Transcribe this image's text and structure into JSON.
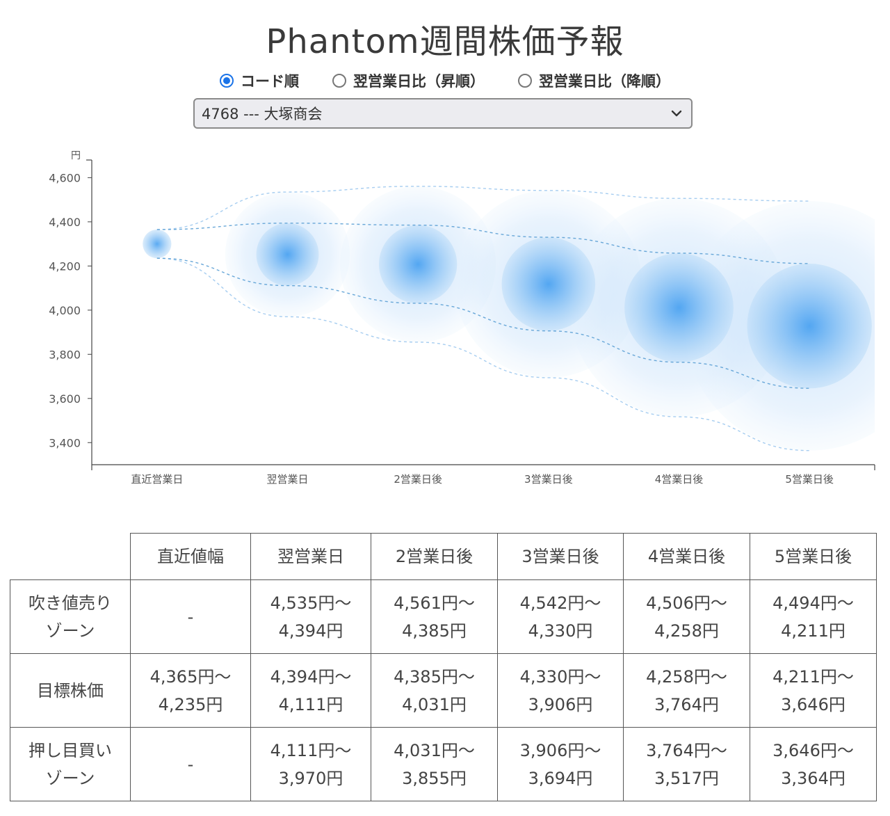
{
  "title": "Phantom週間株価予報",
  "sort_options": [
    {
      "label": "コード順",
      "checked": true
    },
    {
      "label": "翌営業日比（昇順）",
      "checked": false
    },
    {
      "label": "翌営業日比（降順）",
      "checked": false
    }
  ],
  "stock_select": {
    "value": "4768 --- 大塚商会"
  },
  "chart_data": {
    "type": "scatter",
    "title": "",
    "xlabel": "",
    "ylabel": "円",
    "categories": [
      "直近営業日",
      "翌営業日",
      "2営業日後",
      "3営業日後",
      "4営業日後",
      "5営業日後"
    ],
    "ylim": [
      3300,
      4680
    ],
    "yticks": [
      3400,
      3600,
      3800,
      4000,
      4200,
      4400,
      4600
    ],
    "ytick_labels": [
      "3,400",
      "3,600",
      "3,800",
      "4,000",
      "4,200",
      "4,400",
      "4,600"
    ],
    "grid": false,
    "target_center": [
      4300,
      4252,
      4208,
      4118,
      4011,
      3928
    ],
    "target_range": [
      [
        4365,
        4235
      ],
      [
        4394,
        4111
      ],
      [
        4385,
        4031
      ],
      [
        4330,
        3906
      ],
      [
        4258,
        3764
      ],
      [
        4211,
        3646
      ]
    ],
    "outer_range": [
      [
        4365,
        4235
      ],
      [
        4535,
        3970
      ],
      [
        4561,
        3855
      ],
      [
        4542,
        3694
      ],
      [
        4506,
        3517
      ],
      [
        4494,
        3364
      ]
    ],
    "colors": {
      "bubble": "#3d9bf0",
      "dash_inner": "#5a9fd4",
      "dash_outer": "#9cc8ee"
    }
  },
  "table": {
    "columns": [
      "",
      "直近値幅",
      "翌営業日",
      "2営業日後",
      "3営業日後",
      "4営業日後",
      "5営業日後"
    ],
    "rows": [
      {
        "label": [
          "吹き値売り",
          "ゾーン"
        ],
        "cells": [
          [
            "-"
          ],
          [
            "4,535円〜",
            "4,394円"
          ],
          [
            "4,561円〜",
            "4,385円"
          ],
          [
            "4,542円〜",
            "4,330円"
          ],
          [
            "4,506円〜",
            "4,258円"
          ],
          [
            "4,494円〜",
            "4,211円"
          ]
        ]
      },
      {
        "label": [
          "目標株価"
        ],
        "cells": [
          [
            "4,365円〜",
            "4,235円"
          ],
          [
            "4,394円〜",
            "4,111円"
          ],
          [
            "4,385円〜",
            "4,031円"
          ],
          [
            "4,330円〜",
            "3,906円"
          ],
          [
            "4,258円〜",
            "3,764円"
          ],
          [
            "4,211円〜",
            "3,646円"
          ]
        ]
      },
      {
        "label": [
          "押し目買い",
          "ゾーン"
        ],
        "cells": [
          [
            "-"
          ],
          [
            "4,111円〜",
            "3,970円"
          ],
          [
            "4,031円〜",
            "3,855円"
          ],
          [
            "3,906円〜",
            "3,694円"
          ],
          [
            "3,764円〜",
            "3,517円"
          ],
          [
            "3,646円〜",
            "3,364円"
          ]
        ]
      }
    ]
  }
}
